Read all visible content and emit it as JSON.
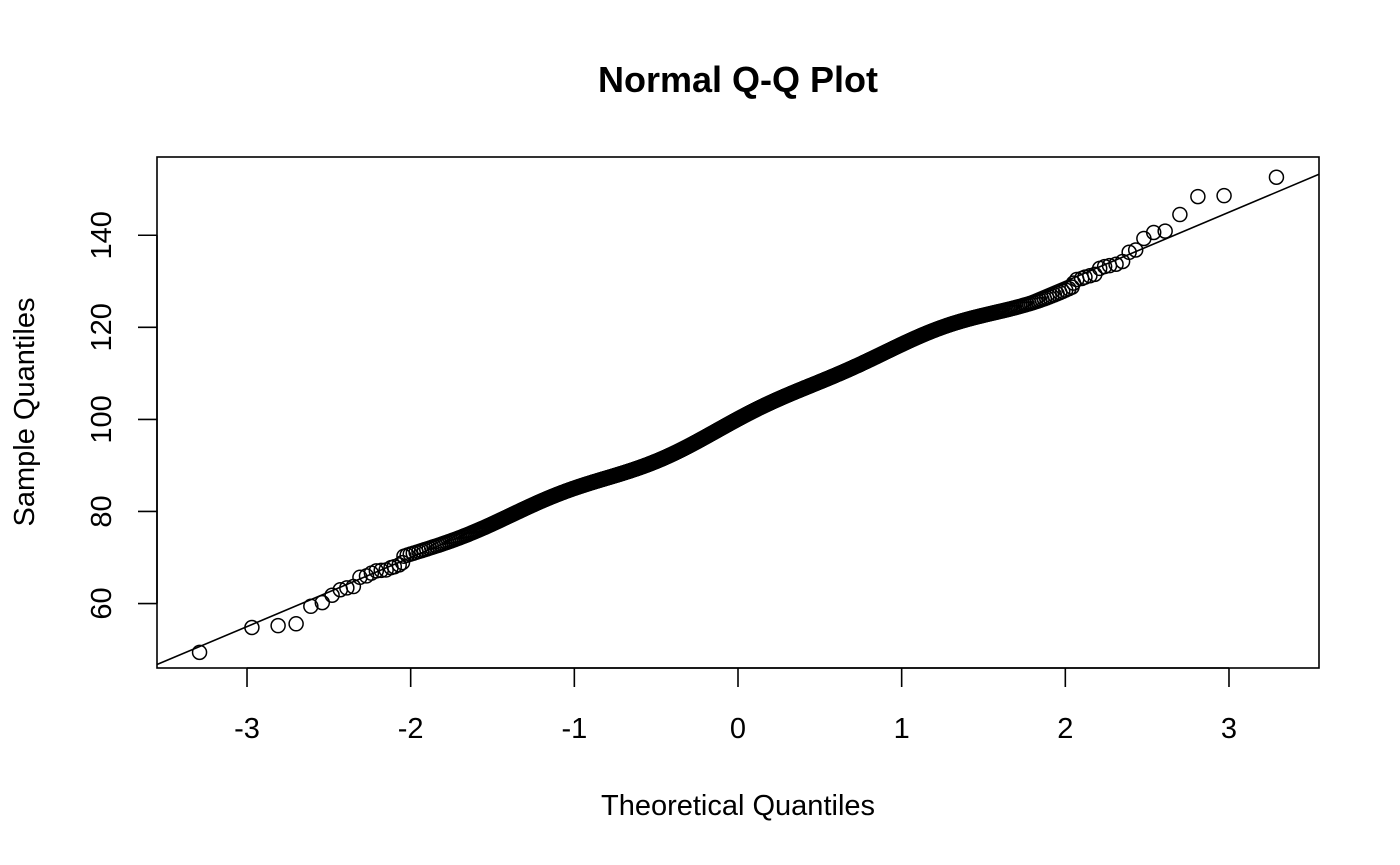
{
  "chart_data": {
    "type": "scatter",
    "title": "Normal Q-Q Plot",
    "xlabel": "Theoretical Quantiles",
    "ylabel": "Sample Quantiles",
    "xlim": [
      -3.55,
      3.55
    ],
    "ylim": [
      46,
      157
    ],
    "x_ticks": [
      -3,
      -2,
      -1,
      0,
      1,
      2,
      3
    ],
    "x_tick_labels": [
      "-3",
      "-2",
      "-1",
      "0",
      "1",
      "2",
      "3"
    ],
    "y_ticks": [
      60,
      80,
      100,
      120,
      140
    ],
    "y_tick_labels": [
      "60",
      "80",
      "100",
      "120",
      "140"
    ],
    "grid": false,
    "reference_line": {
      "intercept": 100,
      "slope": 15
    },
    "point_count": 1000,
    "points": [
      [
        -3.29,
        49.4
      ],
      [
        -2.97,
        54.8
      ],
      [
        -2.81,
        55.2
      ],
      [
        -2.7,
        55.6
      ],
      [
        -2.61,
        59.4
      ],
      [
        -2.54,
        60.2
      ],
      [
        -2.48,
        61.8
      ],
      [
        -2.43,
        63.0
      ],
      [
        -2.39,
        63.4
      ],
      [
        -2.35,
        63.7
      ],
      [
        -2.31,
        65.7
      ],
      [
        -2.27,
        66.0
      ],
      [
        -2.24,
        66.6
      ],
      [
        -2.21,
        67.1
      ],
      [
        -2.18,
        67.2
      ],
      [
        -2.15,
        67.3
      ],
      [
        -2.12,
        67.8
      ],
      [
        -2.1,
        68.0
      ],
      [
        -2.07,
        68.4
      ],
      [
        -2.05,
        68.9
      ],
      [
        2.05,
        129.6
      ],
      [
        2.07,
        130.4
      ],
      [
        2.1,
        130.6
      ],
      [
        2.12,
        130.9
      ],
      [
        2.15,
        131.2
      ],
      [
        2.18,
        131.5
      ],
      [
        2.21,
        132.8
      ],
      [
        2.24,
        133.2
      ],
      [
        2.27,
        133.4
      ],
      [
        2.31,
        133.7
      ],
      [
        2.35,
        134.3
      ],
      [
        2.39,
        136.3
      ],
      [
        2.43,
        136.8
      ],
      [
        2.48,
        139.3
      ],
      [
        2.54,
        140.6
      ],
      [
        2.61,
        140.9
      ],
      [
        2.7,
        144.5
      ],
      [
        2.81,
        148.4
      ],
      [
        2.97,
        148.6
      ],
      [
        3.29,
        152.6
      ]
    ]
  }
}
